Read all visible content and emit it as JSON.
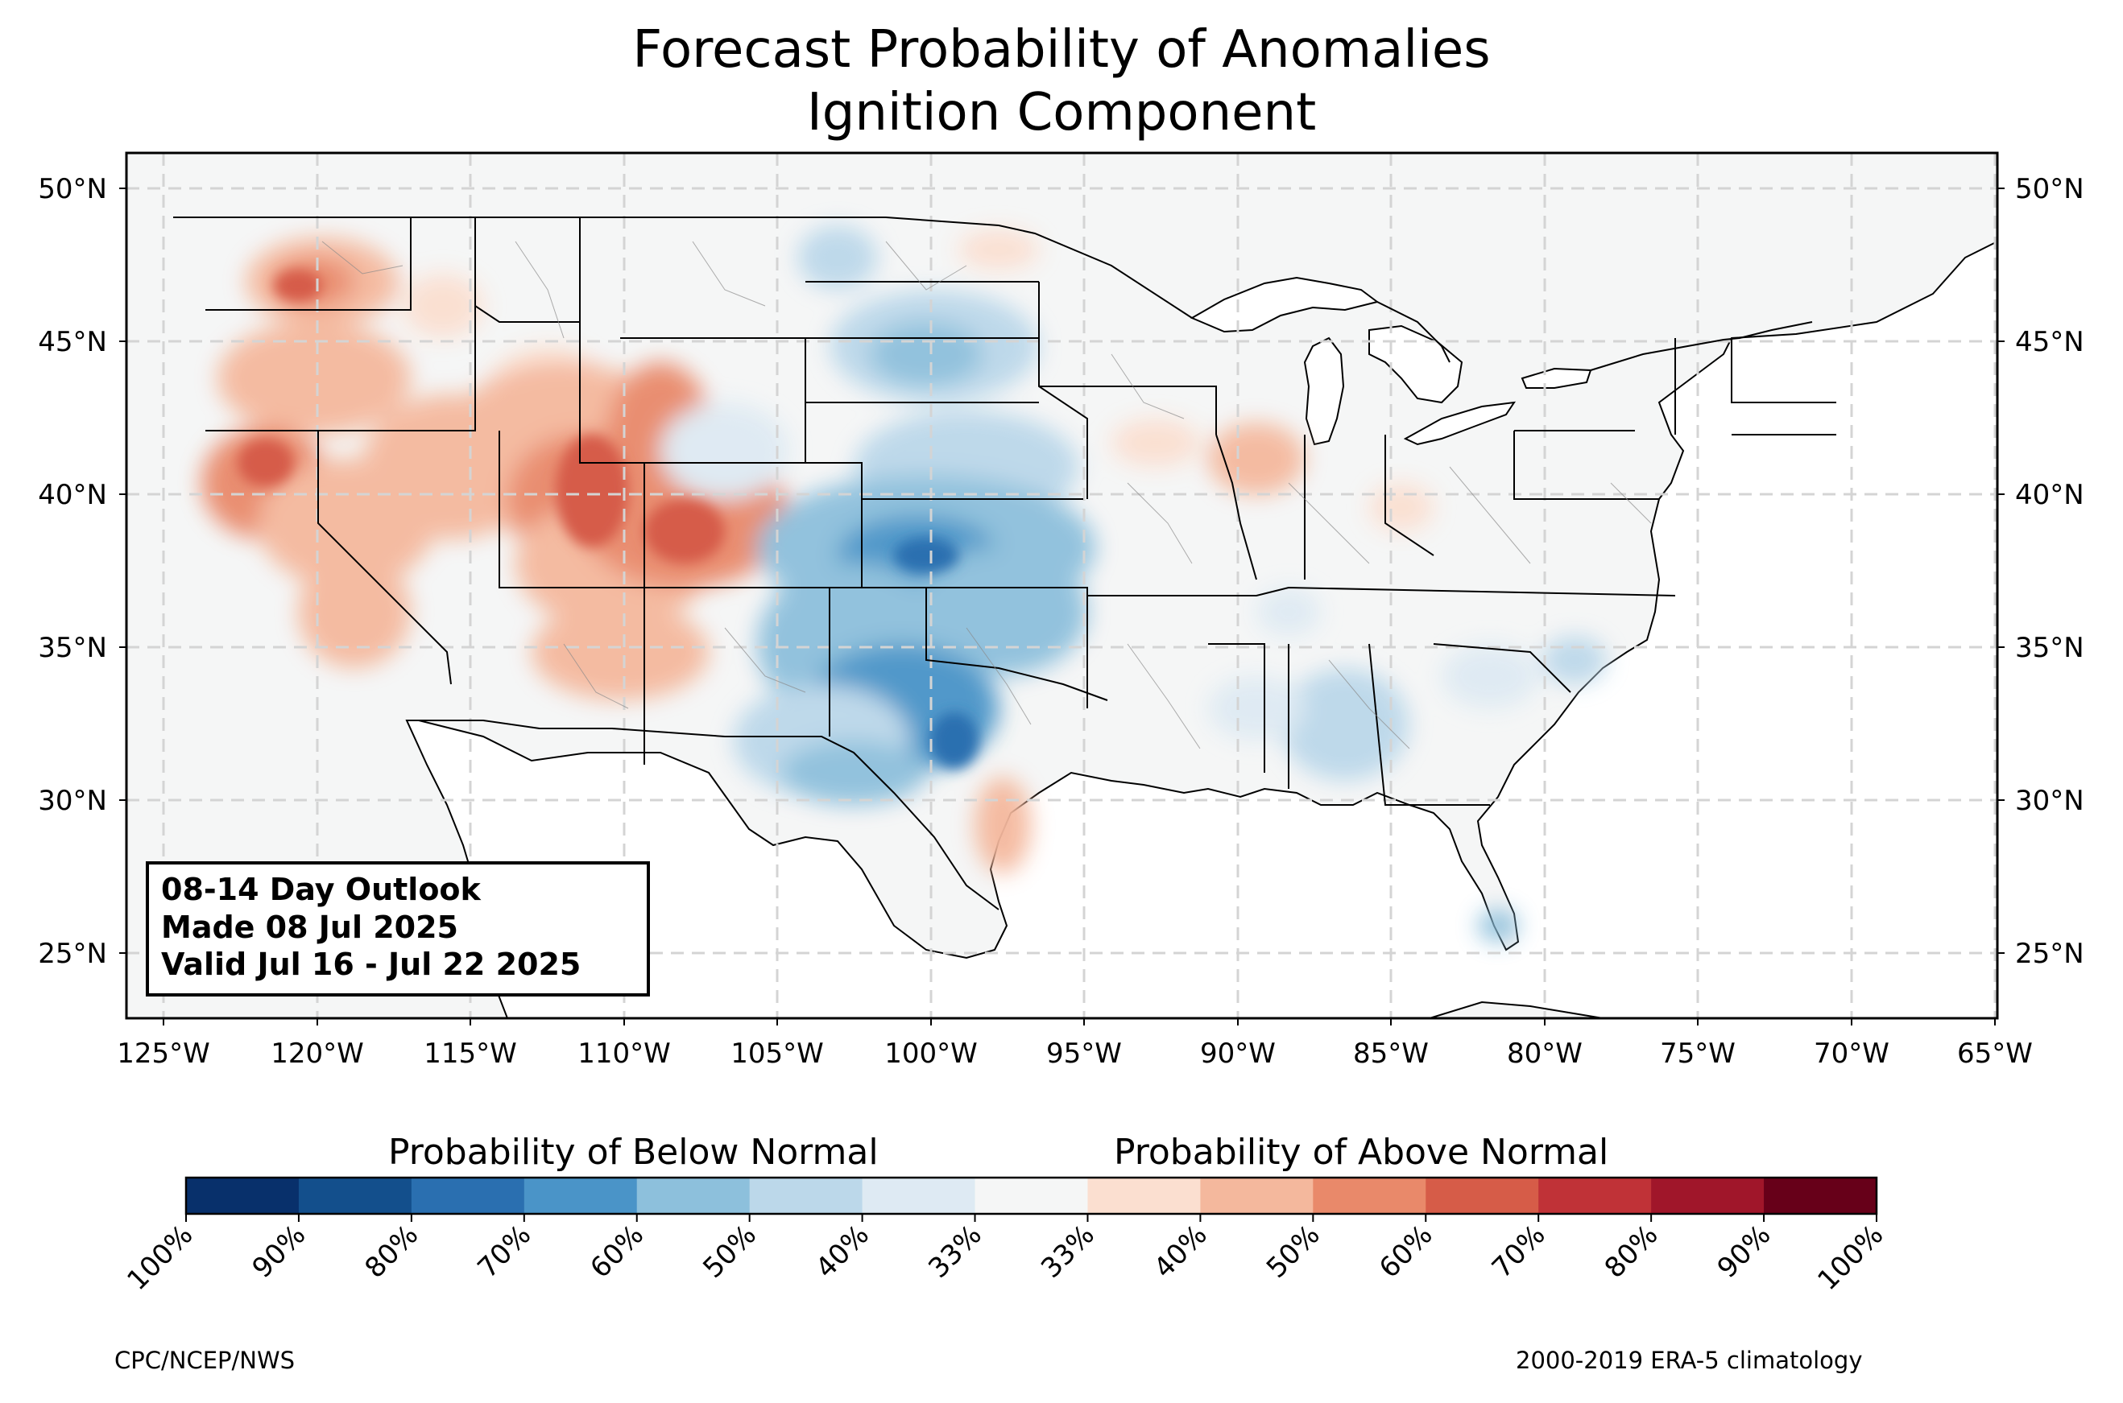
{
  "title": {
    "line1": "Forecast Probability of Anomalies",
    "line2": "Ignition Component"
  },
  "outlook_box": {
    "line1": "08-14 Day Outlook",
    "line2": "Made 08 Jul 2025",
    "line3": "Valid Jul 16 - Jul 22 2025"
  },
  "axes": {
    "lat_labels": [
      "50°N",
      "45°N",
      "40°N",
      "35°N",
      "30°N",
      "25°N"
    ],
    "lon_labels": [
      "125°W",
      "120°W",
      "115°W",
      "110°W",
      "105°W",
      "100°W",
      "95°W",
      "90°W",
      "85°W",
      "80°W",
      "75°W",
      "70°W",
      "65°W"
    ],
    "grid": true
  },
  "colorbar": {
    "below_label": "Probability of Below Normal",
    "above_label": "Probability of Above Normal",
    "tick_labels": [
      "100%",
      "90%",
      "80%",
      "70%",
      "60%",
      "50%",
      "40%",
      "33%",
      "33%",
      "40%",
      "50%",
      "60%",
      "70%",
      "80%",
      "90%",
      "100%"
    ],
    "colors": [
      "#08306b",
      "#134f8c",
      "#2a6fb0",
      "#4a94c8",
      "#8dc0dc",
      "#bcd8ea",
      "#deeaf3",
      "#f5f6f6",
      "#fbdfd0",
      "#f4b89d",
      "#e9896a",
      "#d65c48",
      "#c03237",
      "#a0162a",
      "#670019"
    ]
  },
  "credits": {
    "left": "CPC/NCEP/NWS",
    "right": "2000-2019 ERA-5 climatology"
  },
  "colors": {
    "land": "#f5f6f6",
    "water": "#ffffff",
    "grid": "#d4d4d4"
  }
}
